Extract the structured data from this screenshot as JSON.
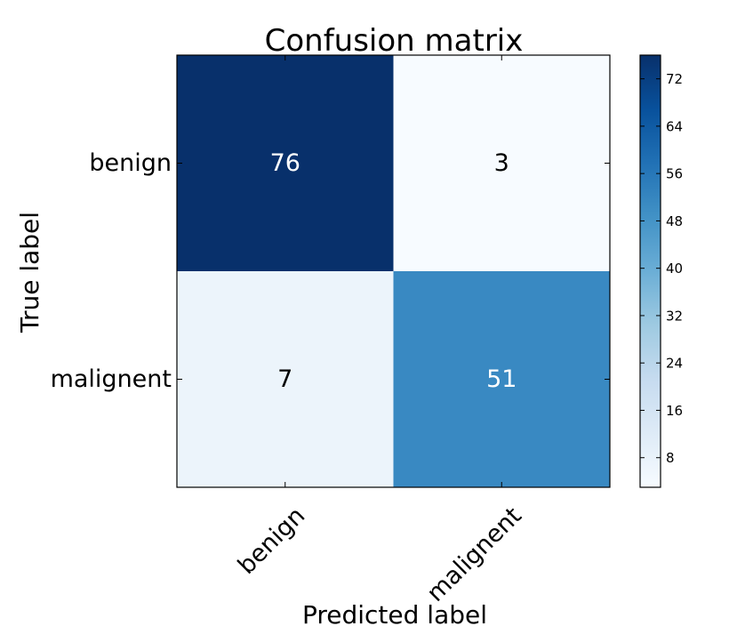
{
  "chart_data": {
    "type": "heatmap",
    "title": "Confusion matrix",
    "xlabel": "Predicted label",
    "ylabel": "True label",
    "x_categories": [
      "benign",
      "malignent"
    ],
    "y_categories": [
      "benign",
      "malignent"
    ],
    "values": [
      [
        76,
        3
      ],
      [
        7,
        51
      ]
    ],
    "colormap": "Blues",
    "color_range": [
      3,
      76
    ],
    "colorbar_ticks": [
      8,
      16,
      24,
      32,
      40,
      48,
      56,
      64,
      72
    ],
    "colorbar_colors": [
      "#f7fbff",
      "#deebf7",
      "#c6dbef",
      "#9ecae1",
      "#6baed6",
      "#4292c6",
      "#2171b5",
      "#08519c",
      "#08306b"
    ],
    "legend": "colorbar-right",
    "grid": false
  }
}
